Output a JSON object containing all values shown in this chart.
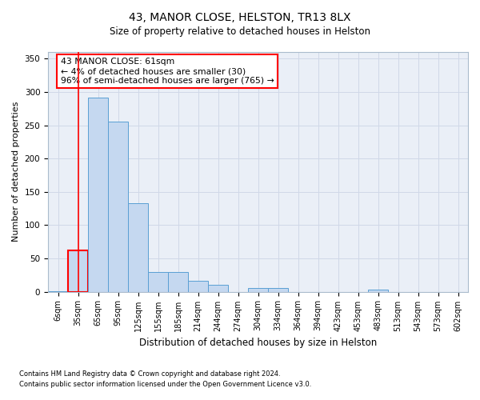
{
  "title": "43, MANOR CLOSE, HELSTON, TR13 8LX",
  "subtitle": "Size of property relative to detached houses in Helston",
  "xlabel": "Distribution of detached houses by size in Helston",
  "ylabel": "Number of detached properties",
  "footnote1": "Contains HM Land Registry data © Crown copyright and database right 2024.",
  "footnote2": "Contains public sector information licensed under the Open Government Licence v3.0.",
  "bar_labels": [
    "6sqm",
    "35sqm",
    "65sqm",
    "95sqm",
    "125sqm",
    "155sqm",
    "185sqm",
    "214sqm",
    "244sqm",
    "274sqm",
    "304sqm",
    "334sqm",
    "364sqm",
    "394sqm",
    "423sqm",
    "453sqm",
    "483sqm",
    "513sqm",
    "543sqm",
    "573sqm",
    "602sqm"
  ],
  "bar_values": [
    1,
    62,
    292,
    255,
    133,
    30,
    29,
    16,
    10,
    0,
    5,
    5,
    0,
    0,
    0,
    0,
    3,
    0,
    0,
    0,
    0
  ],
  "bar_color": "#c5d8f0",
  "bar_edge_color": "#5a9fd4",
  "highlight_bar_index": 1,
  "highlight_edge_color": "red",
  "annotation_title": "43 MANOR CLOSE: 61sqm",
  "annotation_line1": "← 4% of detached houses are smaller (30)",
  "annotation_line2": "96% of semi-detached houses are larger (765) →",
  "annotation_box_color": "white",
  "annotation_box_edge_color": "red",
  "ylim": [
    0,
    360
  ],
  "yticks": [
    0,
    50,
    100,
    150,
    200,
    250,
    300,
    350
  ],
  "grid_color": "#d0d8e8",
  "background_color": "#eaeff7"
}
